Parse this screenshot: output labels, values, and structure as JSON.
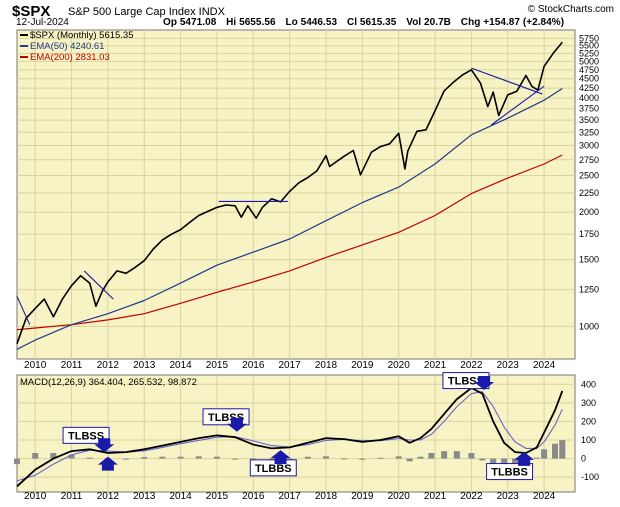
{
  "header": {
    "symbol": "$SPX",
    "name": "S&P 500 Large Cap Index INDX",
    "watermark": "© StockCharts.com",
    "date": "12-Jul-2024",
    "open": "Op 5471.08",
    "high": "Hi 5655.56",
    "low": "Lo 5446.53",
    "close": "Cl 5615.35",
    "volume": "Vol 20.7B",
    "change": "Chg +154.87 (+2.84%)"
  },
  "colors": {
    "panel_bg": "#f7f3c4",
    "grid": "#d9d49e",
    "price": "#000000",
    "ema50": "#1f3a8a",
    "ema200": "#c00000",
    "macd": "#000000",
    "signal": "#6666cc",
    "hist": "#8a8a8a",
    "annotation": "#1a1aa8",
    "trendline": "#1a1aa8"
  },
  "chart_data": [
    {
      "type": "line",
      "title": "$SPX S&P 500 Large Cap Index INDX",
      "scale": "log",
      "ylim": [
        820,
        6050
      ],
      "xlim": [
        2009.5,
        2024.85
      ],
      "x_ticks": [
        "2010",
        "2011",
        "2012",
        "2013",
        "2014",
        "2015",
        "2016",
        "2017",
        "2018",
        "2019",
        "2020",
        "2021",
        "2022",
        "2023",
        "2024"
      ],
      "y_ticks": [
        1000,
        1250,
        1500,
        1750,
        2000,
        2250,
        2500,
        2750,
        3000,
        3250,
        3500,
        3750,
        4000,
        4250,
        4500,
        4750,
        5000,
        5250,
        5500,
        5750
      ],
      "legend": [
        "$SPX (Monthly) 5615.35",
        "EMA(50) 4240.61",
        "EMA(200) 2831.03"
      ],
      "legend_placement": "top-left",
      "series": [
        {
          "name": "$SPX (Monthly)",
          "x": [
            2009.5,
            2009.75,
            2010.0,
            2010.25,
            2010.5,
            2010.75,
            2011.0,
            2011.25,
            2011.5,
            2011.67,
            2011.85,
            2012.0,
            2012.25,
            2012.5,
            2012.75,
            2013.0,
            2013.25,
            2013.5,
            2013.75,
            2014.0,
            2014.25,
            2014.5,
            2014.75,
            2015.0,
            2015.25,
            2015.5,
            2015.67,
            2015.85,
            2016.08,
            2016.25,
            2016.5,
            2016.75,
            2017.0,
            2017.25,
            2017.5,
            2017.75,
            2018.0,
            2018.1,
            2018.5,
            2018.75,
            2018.95,
            2019.25,
            2019.5,
            2019.75,
            2020.0,
            2020.17,
            2020.25,
            2020.5,
            2020.75,
            2021.0,
            2021.25,
            2021.5,
            2021.75,
            2022.0,
            2022.25,
            2022.45,
            2022.6,
            2022.75,
            2023.0,
            2023.25,
            2023.5,
            2023.67,
            2023.83,
            2024.0,
            2024.25,
            2024.5
          ],
          "values": [
            900,
            1050,
            1115,
            1180,
            1060,
            1180,
            1280,
            1360,
            1300,
            1130,
            1240,
            1310,
            1400,
            1380,
            1430,
            1490,
            1600,
            1690,
            1750,
            1800,
            1880,
            1960,
            2010,
            2060,
            2090,
            2080,
            1940,
            2080,
            1930,
            2060,
            2170,
            2130,
            2270,
            2390,
            2470,
            2570,
            2820,
            2640,
            2810,
            2910,
            2510,
            2880,
            2980,
            3030,
            3230,
            2600,
            2900,
            3270,
            3300,
            3700,
            4180,
            4400,
            4600,
            4750,
            4380,
            3800,
            4150,
            3600,
            4080,
            4170,
            4590,
            4290,
            4200,
            4850,
            5250,
            5615
          ]
        },
        {
          "name": "EMA(50)",
          "x": [
            2009.5,
            2010.0,
            2011.0,
            2012.0,
            2013.0,
            2014.0,
            2015.0,
            2016.0,
            2017.0,
            2018.0,
            2019.0,
            2020.0,
            2021.0,
            2022.0,
            2023.0,
            2024.0,
            2024.5
          ],
          "values": [
            870,
            920,
            1010,
            1080,
            1170,
            1300,
            1450,
            1570,
            1700,
            1900,
            2120,
            2330,
            2680,
            3200,
            3540,
            3950,
            4240
          ]
        },
        {
          "name": "EMA(200)",
          "x": [
            2009.5,
            2010.0,
            2011.0,
            2012.0,
            2013.0,
            2014.0,
            2015.0,
            2016.0,
            2017.0,
            2018.0,
            2019.0,
            2020.0,
            2021.0,
            2022.0,
            2023.0,
            2024.0,
            2024.5
          ],
          "values": [
            980,
            990,
            1010,
            1040,
            1080,
            1150,
            1230,
            1310,
            1400,
            1520,
            1640,
            1770,
            1960,
            2240,
            2460,
            2680,
            2831
          ]
        }
      ],
      "trendlines": [
        {
          "x": [
            2009.5,
            2009.85
          ],
          "y": [
            1200,
            1010
          ]
        },
        {
          "x": [
            2011.35,
            2012.15
          ],
          "y": [
            1400,
            1180
          ]
        },
        {
          "x": [
            2015.05,
            2016.95
          ],
          "y": [
            2135,
            2135
          ]
        },
        {
          "x": [
            2022.0,
            2023.95
          ],
          "y": [
            4800,
            4100
          ]
        },
        {
          "x": [
            2022.55,
            2024.0
          ],
          "y": [
            3400,
            4300
          ]
        }
      ]
    },
    {
      "type": "line",
      "title": "MACD(12,26,9) 364.404, 265.532, 98.872",
      "ylim": [
        -180,
        450
      ],
      "y_ticks": [
        -100,
        0,
        100,
        200,
        300,
        400
      ],
      "x_ticks": [
        "2010",
        "2011",
        "2012",
        "2013",
        "2014",
        "2015",
        "2016",
        "2017",
        "2018",
        "2019",
        "2020",
        "2021",
        "2022",
        "2023",
        "2024"
      ],
      "legend": [
        "MACD(12,26,9) 364.404, 265.532, 98.872"
      ],
      "series": [
        {
          "name": "MACD",
          "x": [
            2009.5,
            2010.0,
            2010.5,
            2011.0,
            2011.5,
            2012.0,
            2012.5,
            2013.0,
            2013.5,
            2014.0,
            2014.5,
            2015.0,
            2015.5,
            2016.0,
            2016.5,
            2017.0,
            2017.5,
            2018.0,
            2018.5,
            2019.0,
            2019.5,
            2020.0,
            2020.3,
            2020.6,
            2020.9,
            2021.25,
            2021.6,
            2022.0,
            2022.3,
            2022.6,
            2022.9,
            2023.2,
            2023.5,
            2023.8,
            2024.0,
            2024.3,
            2024.5
          ],
          "values": [
            -150,
            -60,
            0,
            40,
            50,
            30,
            35,
            50,
            70,
            90,
            110,
            125,
            115,
            75,
            55,
            60,
            85,
            110,
            105,
            90,
            100,
            120,
            85,
            110,
            160,
            240,
            320,
            380,
            350,
            200,
            85,
            35,
            30,
            60,
            140,
            260,
            364
          ]
        },
        {
          "name": "Signal",
          "x": [
            2009.5,
            2010.0,
            2010.5,
            2011.0,
            2011.5,
            2012.0,
            2012.5,
            2013.0,
            2013.5,
            2014.0,
            2014.5,
            2015.0,
            2015.5,
            2016.0,
            2016.5,
            2017.0,
            2017.5,
            2018.0,
            2018.5,
            2019.0,
            2019.5,
            2020.0,
            2020.3,
            2020.6,
            2020.9,
            2021.25,
            2021.6,
            2022.0,
            2022.3,
            2022.6,
            2022.9,
            2023.2,
            2023.5,
            2023.8,
            2024.0,
            2024.3,
            2024.5
          ],
          "values": [
            -120,
            -90,
            -30,
            20,
            45,
            40,
            35,
            42,
            60,
            80,
            98,
            115,
            118,
            95,
            70,
            62,
            75,
            98,
            104,
            96,
            96,
            108,
            100,
            100,
            130,
            200,
            280,
            350,
            360,
            280,
            170,
            90,
            55,
            55,
            90,
            180,
            266
          ]
        },
        {
          "name": "Histogram",
          "x": [
            2009.5,
            2010.0,
            2010.5,
            2011.0,
            2011.5,
            2012.0,
            2012.5,
            2013.0,
            2013.5,
            2014.0,
            2014.5,
            2015.0,
            2015.5,
            2016.0,
            2016.5,
            2017.0,
            2017.5,
            2018.0,
            2018.5,
            2019.0,
            2019.5,
            2020.0,
            2020.3,
            2020.6,
            2020.9,
            2021.25,
            2021.6,
            2022.0,
            2022.3,
            2022.6,
            2022.9,
            2023.2,
            2023.5,
            2023.8,
            2024.0,
            2024.3,
            2024.5
          ],
          "values": [
            -30,
            30,
            30,
            20,
            5,
            -10,
            0,
            8,
            10,
            10,
            12,
            10,
            -3,
            -20,
            -15,
            -2,
            10,
            12,
            1,
            -6,
            4,
            12,
            -15,
            10,
            30,
            40,
            40,
            30,
            -10,
            -80,
            -85,
            -55,
            -25,
            5,
            50,
            80,
            99
          ]
        }
      ],
      "annotations": [
        {
          "text": "TLBSS",
          "x": 2011.4,
          "y": 125
        },
        {
          "text": "TLBSS",
          "x": 2015.25,
          "y": 225
        },
        {
          "text": "TLBBS",
          "x": 2016.55,
          "y": -50
        },
        {
          "text": "TLBSS",
          "x": 2021.85,
          "y": 420
        },
        {
          "text": "TLBBS",
          "x": 2023.05,
          "y": -70
        }
      ],
      "arrows": [
        {
          "x": 2011.9,
          "y": 45,
          "direction": "down"
        },
        {
          "x": 2012.0,
          "y": 0,
          "direction": "up"
        },
        {
          "x": 2015.55,
          "y": 155,
          "direction": "down"
        },
        {
          "x": 2016.75,
          "y": 35,
          "direction": "up"
        },
        {
          "x": 2022.35,
          "y": 380,
          "direction": "down"
        },
        {
          "x": 2023.45,
          "y": 25,
          "direction": "up"
        }
      ]
    }
  ]
}
